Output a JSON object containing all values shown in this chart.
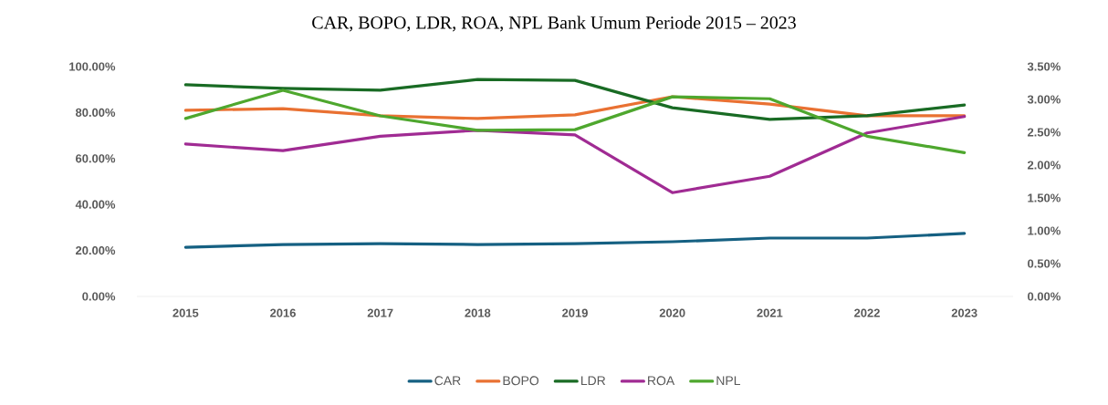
{
  "chart_data": {
    "type": "line",
    "title": "CAR, BOPO, LDR, ROA, NPL Bank Umum Periode 2015 – 2023",
    "categories": [
      "2015",
      "2016",
      "2017",
      "2018",
      "2019",
      "2020",
      "2021",
      "2022",
      "2023"
    ],
    "series": [
      {
        "name": "CAR",
        "color": "#156082",
        "values": [
          21.4,
          22.6,
          23.0,
          22.6,
          23.0,
          23.8,
          25.4,
          25.4,
          27.4
        ]
      },
      {
        "name": "BOPO",
        "color": "#e97132",
        "values": [
          81.0,
          81.7,
          78.6,
          77.4,
          79.0,
          86.9,
          83.7,
          78.6,
          78.6
        ]
      },
      {
        "name": "LDR",
        "color": "#196b24",
        "values": [
          92.1,
          90.5,
          89.7,
          94.4,
          94.0,
          82.1,
          77.0,
          78.6,
          83.3
        ]
      },
      {
        "name": "ROA",
        "color": "#a02b93",
        "axis": "y2",
        "values": [
          2.32,
          2.22,
          2.44,
          2.53,
          2.46,
          1.58,
          1.83,
          2.49,
          2.74
        ]
      },
      {
        "name": "NPL",
        "color": "#4ea72e",
        "axis": "y2",
        "values": [
          2.71,
          3.14,
          2.75,
          2.53,
          2.54,
          3.04,
          3.01,
          2.44,
          2.19
        ]
      }
    ],
    "ylim": [
      0,
      100
    ],
    "yticks": [
      {
        "value": 0,
        "label": "0.00%"
      },
      {
        "value": 20,
        "label": "20.00%"
      },
      {
        "value": 40,
        "label": "40.00%"
      },
      {
        "value": 60,
        "label": "60.00%"
      },
      {
        "value": 80,
        "label": "80.00%"
      },
      {
        "value": 100,
        "label": "100.00%"
      }
    ],
    "y2lim": [
      0,
      3.5
    ],
    "y2ticks": [
      {
        "value": 0,
        "label": "0.00%"
      },
      {
        "value": 0.5,
        "label": "0.50%"
      },
      {
        "value": 1,
        "label": "1.00%"
      },
      {
        "value": 1.5,
        "label": "1.50%"
      },
      {
        "value": 2,
        "label": "2.00%"
      },
      {
        "value": 2.5,
        "label": "2.50%"
      },
      {
        "value": 3,
        "label": "3.00%"
      },
      {
        "value": 3.5,
        "label": "3.50%"
      }
    ],
    "legend": "bottom",
    "marker": "none",
    "line_style": "solid"
  }
}
